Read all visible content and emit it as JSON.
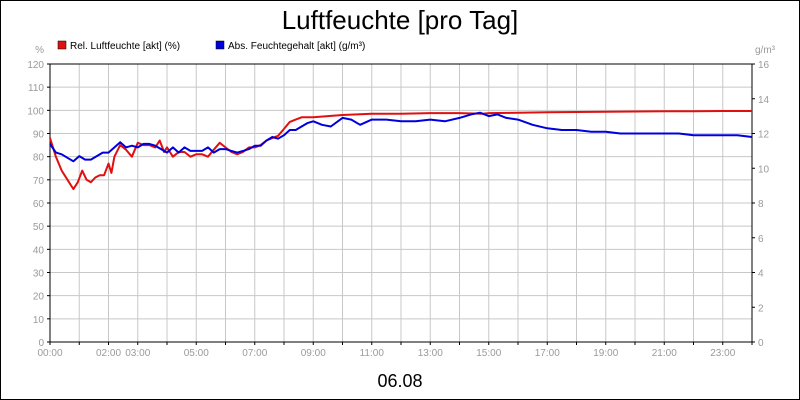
{
  "chart_data": {
    "type": "line",
    "title": "Luftfeuchte [pro Tag]",
    "xlabel": "06.08",
    "ylabel_left": "%",
    "ylabel_right": "g/m³",
    "ylim_left": [
      0,
      120
    ],
    "ylim_right": [
      0,
      16
    ],
    "xlim_hours": [
      0,
      24
    ],
    "grid": true,
    "legend_position": "top-left",
    "x_ticks": [
      "00:00",
      "02:00",
      "03:00",
      "05:00",
      "07:00",
      "09:00",
      "11:00",
      "13:00",
      "15:00",
      "17:00",
      "19:00",
      "21:00",
      "23:00"
    ],
    "x_tick_hours": [
      0,
      2,
      3,
      5,
      7,
      9,
      11,
      13,
      15,
      17,
      19,
      21,
      23
    ],
    "y_ticks_left": [
      "0",
      "10",
      "20",
      "30",
      "40",
      "50",
      "60",
      "70",
      "80",
      "90",
      "100",
      "110",
      "120"
    ],
    "y_ticks_right": [
      "0",
      "2",
      "4",
      "6",
      "8",
      "10",
      "12",
      "14",
      "16"
    ],
    "series": [
      {
        "name": "Rel. Luftfeuchte [akt] (%)",
        "axis": "left",
        "color": "#e01010",
        "x": [
          0,
          0.2,
          0.4,
          0.6,
          0.8,
          0.95,
          1.1,
          1.25,
          1.4,
          1.55,
          1.7,
          1.85,
          2.0,
          2.1,
          2.2,
          2.4,
          2.6,
          2.8,
          3.0,
          3.2,
          3.4,
          3.6,
          3.75,
          3.9,
          4.0,
          4.2,
          4.4,
          4.6,
          4.8,
          5.0,
          5.2,
          5.4,
          5.6,
          5.8,
          6.0,
          6.2,
          6.4,
          6.6,
          6.8,
          7.0,
          7.2,
          7.4,
          7.6,
          7.8,
          8.0,
          8.2,
          8.4,
          8.6,
          8.8,
          9.0,
          9.5,
          10,
          11,
          12,
          13,
          14,
          14.8,
          15,
          16,
          17,
          18,
          19,
          20,
          21,
          22,
          23,
          24
        ],
        "values": [
          88,
          80,
          74,
          70,
          66,
          69,
          74,
          70,
          69,
          71,
          72,
          72,
          77,
          73,
          80,
          85,
          83,
          80,
          86,
          85,
          85,
          84,
          87,
          82,
          84,
          80,
          82,
          82,
          80,
          81,
          81,
          80,
          83,
          86,
          84,
          82,
          81,
          82,
          84,
          84,
          85,
          87,
          88,
          89,
          92,
          95,
          96,
          97,
          97,
          97,
          97.5,
          98,
          98.5,
          98.5,
          98.8,
          98.8,
          98.5,
          98.8,
          99,
          99.2,
          99.3,
          99.4,
          99.5,
          99.6,
          99.6,
          99.7,
          99.7
        ]
      },
      {
        "name": "Abs. Feuchtegehalt [akt] (g/m³)",
        "axis": "right",
        "color": "#0000dd",
        "x": [
          0,
          0.2,
          0.4,
          0.6,
          0.8,
          1.0,
          1.2,
          1.4,
          1.6,
          1.8,
          2.0,
          2.2,
          2.4,
          2.6,
          2.8,
          3.0,
          3.2,
          3.4,
          3.6,
          3.8,
          4.0,
          4.2,
          4.4,
          4.6,
          4.8,
          5.0,
          5.2,
          5.4,
          5.6,
          5.8,
          6.0,
          6.2,
          6.4,
          6.6,
          6.8,
          7.0,
          7.2,
          7.4,
          7.6,
          7.8,
          8.0,
          8.2,
          8.4,
          8.6,
          8.8,
          9.0,
          9.3,
          9.6,
          10.0,
          10.3,
          10.6,
          11,
          11.5,
          12,
          12.5,
          13,
          13.5,
          14,
          14.4,
          14.7,
          15.0,
          15.3,
          15.6,
          16,
          16.5,
          17,
          17.5,
          18,
          18.5,
          19,
          19.5,
          20,
          20.5,
          21,
          21.5,
          22,
          22.5,
          23,
          23.5,
          24
        ],
        "values": [
          11.4,
          10.9,
          10.8,
          10.6,
          10.4,
          10.7,
          10.5,
          10.5,
          10.7,
          10.9,
          10.9,
          11.2,
          11.5,
          11.2,
          11.3,
          11.2,
          11.4,
          11.4,
          11.3,
          11.1,
          10.9,
          11.2,
          10.9,
          11.2,
          11.0,
          11.0,
          11.0,
          11.2,
          10.9,
          11.1,
          11.1,
          11.0,
          10.9,
          11.0,
          11.1,
          11.3,
          11.3,
          11.6,
          11.8,
          11.7,
          11.9,
          12.2,
          12.2,
          12.4,
          12.6,
          12.7,
          12.5,
          12.4,
          12.9,
          12.8,
          12.5,
          12.8,
          12.8,
          12.7,
          12.7,
          12.8,
          12.7,
          12.9,
          13.1,
          13.2,
          13.0,
          13.1,
          12.9,
          12.8,
          12.5,
          12.3,
          12.2,
          12.2,
          12.1,
          12.1,
          12.0,
          12.0,
          12.0,
          12.0,
          12.0,
          11.9,
          11.9,
          11.9,
          11.9,
          11.8
        ]
      }
    ]
  }
}
